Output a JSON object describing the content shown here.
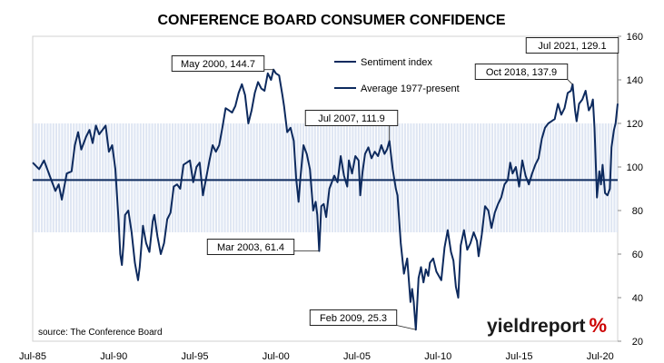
{
  "chart_data": {
    "type": "line",
    "title": "CONFERENCE BOARD CONSUMER CONFIDENCE",
    "ylim": [
      20,
      160
    ],
    "yticks": [
      20,
      40,
      60,
      80,
      100,
      120,
      140,
      160
    ],
    "xlim": [
      1985.5,
      2021.58
    ],
    "xticks": [
      {
        "x": 1985.5,
        "label": "Jul-85"
      },
      {
        "x": 1990.5,
        "label": "Jul-90"
      },
      {
        "x": 1995.5,
        "label": "Jul-95"
      },
      {
        "x": 2000.5,
        "label": "Jul-00"
      },
      {
        "x": 2005.5,
        "label": "Jul-05"
      },
      {
        "x": 2010.5,
        "label": "Jul-10"
      },
      {
        "x": 2015.5,
        "label": "Jul-15"
      },
      {
        "x": 2020.5,
        "label": "Jul-20"
      }
    ],
    "grid": false,
    "legend_position": "top-center",
    "band": {
      "low": 70,
      "high": 120,
      "color": "#dfe6f3"
    },
    "average": {
      "name": "Average 1977-present",
      "value": 94,
      "color": "#0d2a5e"
    },
    "series": [
      {
        "name": "Sentiment index",
        "color": "#0d2a5e",
        "points": [
          [
            1985.5,
            102
          ],
          [
            1985.9,
            99
          ],
          [
            1986.2,
            103
          ],
          [
            1986.6,
            95
          ],
          [
            1986.9,
            89
          ],
          [
            1987.1,
            92
          ],
          [
            1987.3,
            85
          ],
          [
            1987.6,
            97
          ],
          [
            1987.9,
            98
          ],
          [
            1988.1,
            110
          ],
          [
            1988.3,
            116
          ],
          [
            1988.5,
            108
          ],
          [
            1988.8,
            114
          ],
          [
            1989.0,
            117
          ],
          [
            1989.2,
            111
          ],
          [
            1989.4,
            119
          ],
          [
            1989.6,
            115
          ],
          [
            1989.8,
            117
          ],
          [
            1990.0,
            119
          ],
          [
            1990.2,
            107
          ],
          [
            1990.4,
            110
          ],
          [
            1990.6,
            99
          ],
          [
            1990.7,
            87
          ],
          [
            1990.8,
            75
          ],
          [
            1990.9,
            60
          ],
          [
            1991.0,
            55
          ],
          [
            1991.1,
            65
          ],
          [
            1991.2,
            78
          ],
          [
            1991.4,
            80
          ],
          [
            1991.6,
            70
          ],
          [
            1991.8,
            56
          ],
          [
            1991.9,
            52
          ],
          [
            1992.0,
            48
          ],
          [
            1992.1,
            54
          ],
          [
            1992.3,
            73
          ],
          [
            1992.5,
            65
          ],
          [
            1992.7,
            61
          ],
          [
            1992.9,
            75
          ],
          [
            1993.0,
            78
          ],
          [
            1993.2,
            68
          ],
          [
            1993.4,
            60
          ],
          [
            1993.6,
            65
          ],
          [
            1993.8,
            76
          ],
          [
            1994.0,
            79
          ],
          [
            1994.2,
            91
          ],
          [
            1994.4,
            92
          ],
          [
            1994.6,
            90
          ],
          [
            1994.8,
            101
          ],
          [
            1995.0,
            102
          ],
          [
            1995.2,
            103
          ],
          [
            1995.4,
            93
          ],
          [
            1995.6,
            100
          ],
          [
            1995.8,
            102
          ],
          [
            1996.0,
            87
          ],
          [
            1996.2,
            95
          ],
          [
            1996.4,
            103
          ],
          [
            1996.6,
            110
          ],
          [
            1996.8,
            107
          ],
          [
            1997.0,
            110
          ],
          [
            1997.2,
            118
          ],
          [
            1997.4,
            127
          ],
          [
            1997.6,
            126
          ],
          [
            1997.8,
            125
          ],
          [
            1998.0,
            128
          ],
          [
            1998.2,
            134
          ],
          [
            1998.4,
            138
          ],
          [
            1998.6,
            133
          ],
          [
            1998.8,
            120
          ],
          [
            1999.0,
            126
          ],
          [
            1999.2,
            134
          ],
          [
            1999.4,
            139
          ],
          [
            1999.6,
            136
          ],
          [
            1999.8,
            135
          ],
          [
            2000.0,
            143
          ],
          [
            2000.2,
            140
          ],
          [
            2000.35,
            144.7
          ],
          [
            2000.5,
            143
          ],
          [
            2000.7,
            142
          ],
          [
            2000.9,
            133
          ],
          [
            2001.0,
            128
          ],
          [
            2001.2,
            116
          ],
          [
            2001.4,
            118
          ],
          [
            2001.6,
            112
          ],
          [
            2001.75,
            95
          ],
          [
            2001.9,
            84
          ],
          [
            2002.0,
            94
          ],
          [
            2002.2,
            110
          ],
          [
            2002.4,
            106
          ],
          [
            2002.6,
            99
          ],
          [
            2002.8,
            80
          ],
          [
            2002.95,
            84
          ],
          [
            2003.05,
            78
          ],
          [
            2003.17,
            61.4
          ],
          [
            2003.3,
            82
          ],
          [
            2003.45,
            83
          ],
          [
            2003.6,
            77
          ],
          [
            2003.8,
            90
          ],
          [
            2004.0,
            94
          ],
          [
            2004.1,
            96
          ],
          [
            2004.3,
            93
          ],
          [
            2004.5,
            105
          ],
          [
            2004.7,
            96
          ],
          [
            2004.9,
            91
          ],
          [
            2005.0,
            103
          ],
          [
            2005.2,
            97
          ],
          [
            2005.4,
            105
          ],
          [
            2005.6,
            103
          ],
          [
            2005.7,
            87
          ],
          [
            2005.85,
            98
          ],
          [
            2006.0,
            106
          ],
          [
            2006.2,
            109
          ],
          [
            2006.4,
            104
          ],
          [
            2006.6,
            107
          ],
          [
            2006.8,
            105
          ],
          [
            2007.0,
            110
          ],
          [
            2007.2,
            106
          ],
          [
            2007.35,
            108
          ],
          [
            2007.5,
            111.9
          ],
          [
            2007.7,
            99
          ],
          [
            2007.9,
            90
          ],
          [
            2008.0,
            87
          ],
          [
            2008.2,
            65
          ],
          [
            2008.4,
            51
          ],
          [
            2008.6,
            58
          ],
          [
            2008.8,
            38
          ],
          [
            2008.9,
            44
          ],
          [
            2009.0,
            38
          ],
          [
            2009.13,
            25.3
          ],
          [
            2009.3,
            49
          ],
          [
            2009.45,
            54
          ],
          [
            2009.6,
            47
          ],
          [
            2009.75,
            53
          ],
          [
            2009.9,
            50
          ],
          [
            2010.0,
            56
          ],
          [
            2010.2,
            58
          ],
          [
            2010.4,
            52
          ],
          [
            2010.55,
            50
          ],
          [
            2010.7,
            48
          ],
          [
            2010.9,
            63
          ],
          [
            2011.1,
            71
          ],
          [
            2011.3,
            61
          ],
          [
            2011.45,
            57
          ],
          [
            2011.6,
            45
          ],
          [
            2011.75,
            40
          ],
          [
            2011.9,
            64
          ],
          [
            2012.1,
            71
          ],
          [
            2012.3,
            62
          ],
          [
            2012.5,
            65
          ],
          [
            2012.7,
            70
          ],
          [
            2012.9,
            66
          ],
          [
            2013.0,
            59
          ],
          [
            2013.2,
            69
          ],
          [
            2013.4,
            82
          ],
          [
            2013.6,
            80
          ],
          [
            2013.8,
            72
          ],
          [
            2014.0,
            79
          ],
          [
            2014.2,
            83
          ],
          [
            2014.4,
            86
          ],
          [
            2014.6,
            92
          ],
          [
            2014.8,
            94
          ],
          [
            2014.95,
            102
          ],
          [
            2015.1,
            97
          ],
          [
            2015.3,
            100
          ],
          [
            2015.5,
            91
          ],
          [
            2015.7,
            103
          ],
          [
            2015.9,
            96
          ],
          [
            2016.1,
            92
          ],
          [
            2016.3,
            97
          ],
          [
            2016.5,
            101
          ],
          [
            2016.7,
            104
          ],
          [
            2016.9,
            113
          ],
          [
            2017.1,
            118
          ],
          [
            2017.3,
            120
          ],
          [
            2017.5,
            121
          ],
          [
            2017.7,
            122
          ],
          [
            2017.9,
            129
          ],
          [
            2018.1,
            124
          ],
          [
            2018.3,
            127
          ],
          [
            2018.5,
            134
          ],
          [
            2018.7,
            135
          ],
          [
            2018.8,
            137.9
          ],
          [
            2018.95,
            126
          ],
          [
            2019.05,
            121
          ],
          [
            2019.2,
            129
          ],
          [
            2019.4,
            131
          ],
          [
            2019.6,
            135
          ],
          [
            2019.8,
            126
          ],
          [
            2019.95,
            128
          ],
          [
            2020.05,
            131
          ],
          [
            2020.15,
            118
          ],
          [
            2020.3,
            86
          ],
          [
            2020.45,
            98
          ],
          [
            2020.55,
            92
          ],
          [
            2020.65,
            101
          ],
          [
            2020.8,
            88
          ],
          [
            2020.95,
            87
          ],
          [
            2021.1,
            90
          ],
          [
            2021.2,
            109
          ],
          [
            2021.35,
            117
          ],
          [
            2021.45,
            120
          ],
          [
            2021.58,
            129.1
          ]
        ]
      }
    ],
    "annotations": [
      {
        "label": "May 2000, 144.7",
        "x": 2000.35,
        "y": 144.7
      },
      {
        "label": "Mar 2003, 61.4",
        "x": 2003.17,
        "y": 61.4
      },
      {
        "label": "Jul 2007, 111.9",
        "x": 2007.5,
        "y": 111.9
      },
      {
        "label": "Feb 2009, 25.3",
        "x": 2009.13,
        "y": 25.3
      },
      {
        "label": "Oct 2018, 137.9",
        "x": 2018.8,
        "y": 137.9
      },
      {
        "label": "Jul 2021, 129.1",
        "x": 2021.58,
        "y": 129.1
      }
    ]
  },
  "legend": {
    "items": [
      {
        "label": "Sentiment index"
      },
      {
        "label": "Average 1977-present"
      }
    ]
  },
  "source": "source: The Conference Board",
  "logo": {
    "word": "yieldreport",
    "pct": "%"
  }
}
